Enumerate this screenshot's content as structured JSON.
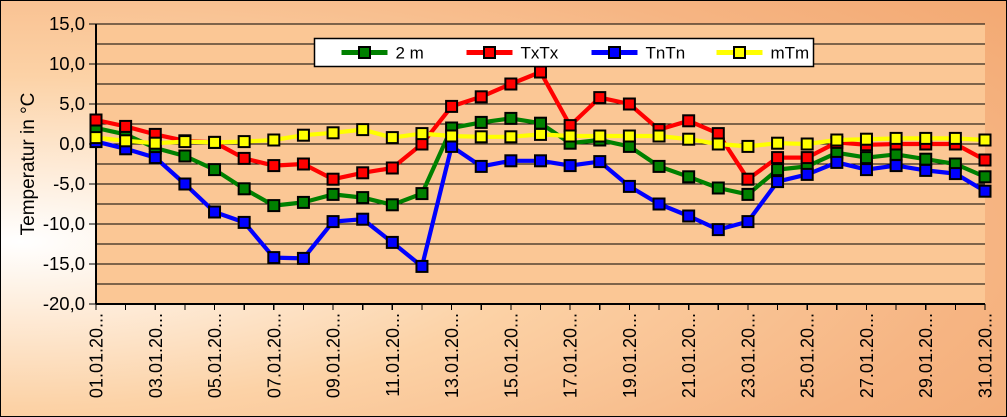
{
  "chart_data": {
    "type": "line",
    "title": "",
    "ylabel": "Temperatur in °C",
    "ylim": [
      -20,
      15
    ],
    "grid_step": 2.5,
    "ytick_step": 5,
    "ytick_labels": [
      "15,0",
      "10,0",
      "5,0",
      "0,0",
      "-5,0",
      "-10,0",
      "-15,0",
      "-20,0"
    ],
    "x_days": 31,
    "xtick_label_days": [
      1,
      3,
      5,
      7,
      9,
      11,
      13,
      15,
      17,
      19,
      21,
      23,
      25,
      27,
      29,
      31
    ],
    "xtick_labels": [
      "01.01.20...",
      "03.01.20...",
      "05.01.20...",
      "07.01.20...",
      "09.01.20...",
      "11.01.20...",
      "13.01.20...",
      "15.01.20...",
      "17.01.20...",
      "19.01.20...",
      "21.01.20...",
      "23.01.20...",
      "25.01.20...",
      "27.01.20...",
      "29.01.20...",
      "31.01.20..."
    ],
    "legend_position": "top-center",
    "grid_on": true,
    "series": [
      {
        "name": "2 m",
        "color": "#008000",
        "values": [
          2.0,
          1.2,
          -0.5,
          -1.5,
          -3.2,
          -5.6,
          -7.7,
          -7.3,
          -6.3,
          -6.7,
          -7.6,
          -6.2,
          2.0,
          2.7,
          3.2,
          2.6,
          0.1,
          0.5,
          -0.3,
          -2.8,
          -4.1,
          -5.5,
          -6.3,
          -3.2,
          -2.8,
          -1.1,
          -1.7,
          -1.3,
          -1.9,
          -2.5,
          -4.1
        ]
      },
      {
        "name": "TxTx",
        "color": "#FF0000",
        "values": [
          3.0,
          2.2,
          1.2,
          0.4,
          0.2,
          -1.8,
          -2.7,
          -2.5,
          -4.4,
          -3.6,
          -3.0,
          0.0,
          4.7,
          5.9,
          7.5,
          9.0,
          2.3,
          5.8,
          5.0,
          1.8,
          2.9,
          1.3,
          -4.4,
          -1.7,
          -1.7,
          0.2,
          -0.1,
          0.0,
          0.0,
          0.0,
          -2.0
        ]
      },
      {
        "name": "TnTn",
        "color": "#0000FF",
        "values": [
          0.3,
          -0.6,
          -1.7,
          -5.0,
          -8.5,
          -9.8,
          -14.2,
          -14.3,
          -9.7,
          -9.4,
          -12.3,
          -15.3,
          -0.3,
          -2.8,
          -2.1,
          -2.1,
          -2.7,
          -2.2,
          -5.3,
          -7.5,
          -9.0,
          -10.7,
          -9.7,
          -4.7,
          -3.8,
          -2.3,
          -3.2,
          -2.7,
          -3.3,
          -3.7,
          -5.9
        ]
      },
      {
        "name": "mTm",
        "color": "#FFFF00",
        "values": [
          0.8,
          0.4,
          0.1,
          0.3,
          0.2,
          0.3,
          0.5,
          1.1,
          1.4,
          1.8,
          0.8,
          1.3,
          1.0,
          0.9,
          0.9,
          1.2,
          1.0,
          1.0,
          1.0,
          1.0,
          0.6,
          0.0,
          -0.3,
          0.1,
          0.0,
          0.5,
          0.6,
          0.7,
          0.7,
          0.7,
          0.5
        ]
      }
    ]
  },
  "colors": {
    "plot_bg": "#FBC795",
    "gridline": "#000000",
    "axis": "#000000",
    "legend_bg": "#FFFFFF",
    "legend_border": "#000000",
    "text": "#000000"
  }
}
